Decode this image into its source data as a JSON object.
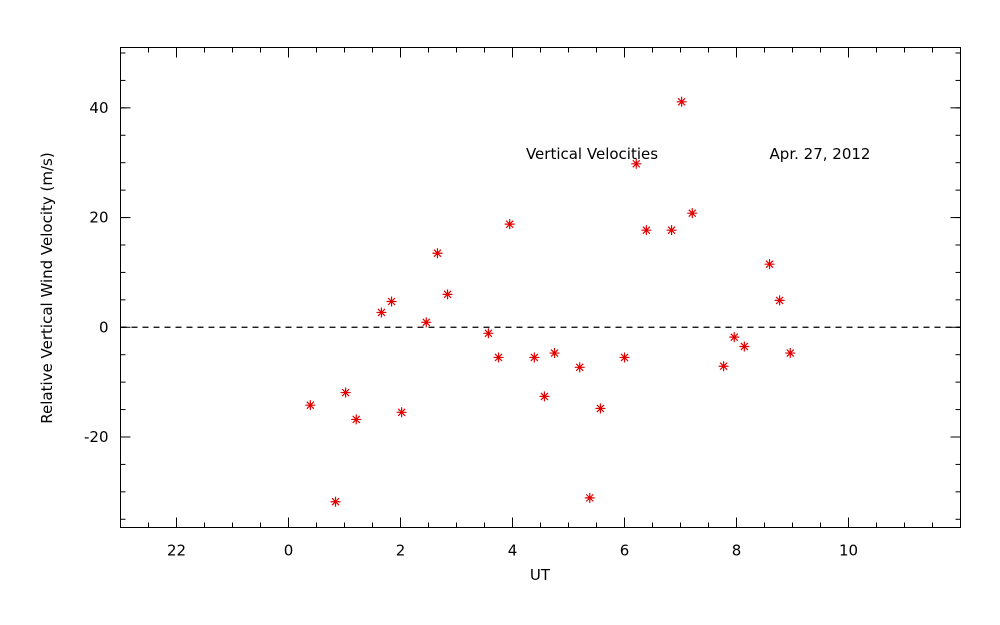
{
  "chart_data": {
    "type": "scatter",
    "annotations": [
      "Vertical Velocities",
      "Apr. 27, 2012"
    ],
    "xlabel": "UT",
    "ylabel": "Relative Vertical Wind Velocity (m/s)",
    "color": "#e00000",
    "hline": 0,
    "xlim": [
      -3,
      12
    ],
    "ylim": [
      -36.5,
      51
    ],
    "xticks": [
      {
        "value": -2,
        "label": "22"
      },
      0,
      2,
      4,
      6,
      8,
      10
    ],
    "yticks": [
      -20,
      0,
      20,
      40
    ],
    "x": [
      0.39,
      0.84,
      1.02,
      1.21,
      1.66,
      1.84,
      2.02,
      2.46,
      2.66,
      2.84,
      3.57,
      3.75,
      3.95,
      4.39,
      4.57,
      4.75,
      5.2,
      5.38,
      5.57,
      6.0,
      6.21,
      6.39,
      6.84,
      7.02,
      7.21,
      7.77,
      7.96,
      8.14,
      8.59,
      8.77,
      8.96
    ],
    "values": [
      -14.2,
      -31.8,
      -11.9,
      -16.8,
      2.7,
      4.7,
      -15.5,
      0.9,
      13.5,
      6.0,
      -1.1,
      -5.5,
      18.8,
      -5.5,
      -12.6,
      -4.7,
      -7.3,
      -31.1,
      -14.8,
      -5.5,
      29.8,
      17.7,
      17.7,
      41.1,
      20.8,
      -7.1,
      -1.8,
      -3.5,
      11.5,
      4.9,
      -4.7
    ]
  }
}
